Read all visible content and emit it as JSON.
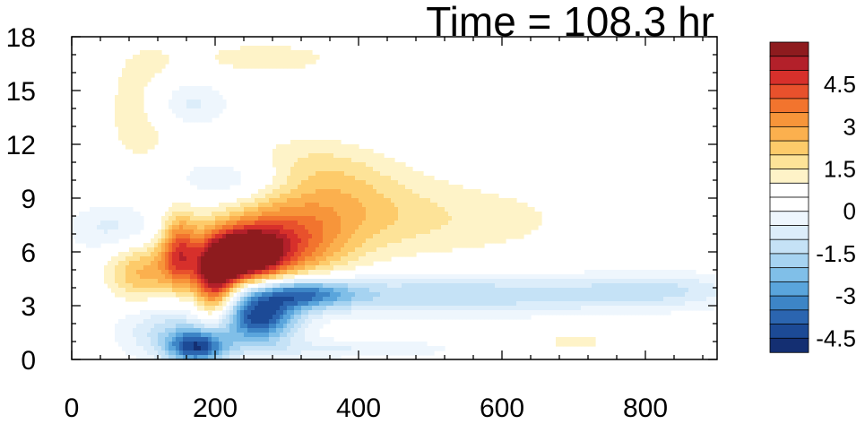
{
  "chart_data": {
    "type": "heatmap",
    "title": "Time = 108.3 hr",
    "xlabel": "",
    "ylabel": "",
    "xlim": [
      0,
      900
    ],
    "ylim": [
      0,
      18
    ],
    "x_ticks": [
      "0",
      "200",
      "400",
      "600",
      "800"
    ],
    "y_ticks": [
      "0",
      "3",
      "6",
      "9",
      "12",
      "15",
      "18"
    ],
    "grid": false,
    "colorbar": {
      "levels": [
        5.5,
        5,
        4.5,
        4,
        3.5,
        3,
        2.5,
        2,
        1.5,
        1,
        0.5,
        0,
        -0.5,
        -1,
        -1.5,
        -2,
        -2.5,
        -3,
        -3.5,
        -4,
        -4.5,
        -5
      ],
      "colors": [
        "#8e1b1e",
        "#b3202a",
        "#d7302b",
        "#e8512c",
        "#f2742e",
        "#f7953a",
        "#fbb04e",
        "#fdcb6a",
        "#fde398",
        "#fef3c8",
        "#ffffff",
        "#ffffff",
        "#eef6fd",
        "#dcedfa",
        "#c5e2f6",
        "#a6d3f1",
        "#80bfe8",
        "#5aa5dc",
        "#3d85c6",
        "#2b65b0",
        "#1c4a96",
        "#142f72"
      ],
      "labels": [
        "4.5",
        "3",
        "1.5",
        "0",
        "-1.5",
        "-3",
        "-4.5"
      ],
      "label_values": [
        4.5,
        3,
        1.5,
        0,
        -1.5,
        -3,
        -4.5
      ]
    },
    "features": [
      {
        "x": 240,
        "y": 5.8,
        "sx": 35,
        "sy": 1.0,
        "value": 5.5
      },
      {
        "x": 200,
        "y": 4.3,
        "sx": 22,
        "sy": 1.5,
        "value": 4.8
      },
      {
        "x": 290,
        "y": 6.3,
        "sx": 60,
        "sy": 1.5,
        "value": 3.0
      },
      {
        "x": 150,
        "y": 6.0,
        "sx": 18,
        "sy": 1.5,
        "value": 3.4
      },
      {
        "x": 100,
        "y": 4.7,
        "sx": 35,
        "sy": 1.3,
        "value": 2.2
      },
      {
        "x": 350,
        "y": 8.5,
        "sx": 90,
        "sy": 1.8,
        "value": 1.5
      },
      {
        "x": 320,
        "y": 10.5,
        "sx": 70,
        "sy": 1.2,
        "value": 1.1
      },
      {
        "x": 520,
        "y": 7.8,
        "sx": 140,
        "sy": 1.5,
        "value": 0.8
      },
      {
        "x": 100,
        "y": 14.0,
        "sx": 40,
        "sy": 2.5,
        "value": 0.9
      },
      {
        "x": 270,
        "y": 16.8,
        "sx": 90,
        "sy": 0.8,
        "value": 0.7
      },
      {
        "x": 700,
        "y": 1.0,
        "sx": 60,
        "sy": 0.6,
        "value": 0.6
      },
      {
        "x": 260,
        "y": 2.3,
        "sx": 40,
        "sy": 1.0,
        "value": -4.6
      },
      {
        "x": 175,
        "y": 0.7,
        "sx": 30,
        "sy": 0.7,
        "value": -4.2
      },
      {
        "x": 320,
        "y": 3.7,
        "sx": 50,
        "sy": 0.6,
        "value": -3.2
      },
      {
        "x": 520,
        "y": 3.6,
        "sx": 200,
        "sy": 0.8,
        "value": -2.0
      },
      {
        "x": 820,
        "y": 3.9,
        "sx": 80,
        "sy": 0.7,
        "value": -1.2
      },
      {
        "x": 130,
        "y": 1.8,
        "sx": 50,
        "sy": 1.2,
        "value": -1.6
      },
      {
        "x": 240,
        "y": 10.0,
        "sx": 70,
        "sy": 1.0,
        "value": -1.6
      },
      {
        "x": 160,
        "y": 14.3,
        "sx": 40,
        "sy": 1.0,
        "value": -1.3
      },
      {
        "x": 60,
        "y": 7.3,
        "sx": 50,
        "sy": 1.0,
        "value": -1.2
      },
      {
        "x": 380,
        "y": 0.6,
        "sx": 120,
        "sy": 0.4,
        "value": -1.0
      }
    ]
  }
}
